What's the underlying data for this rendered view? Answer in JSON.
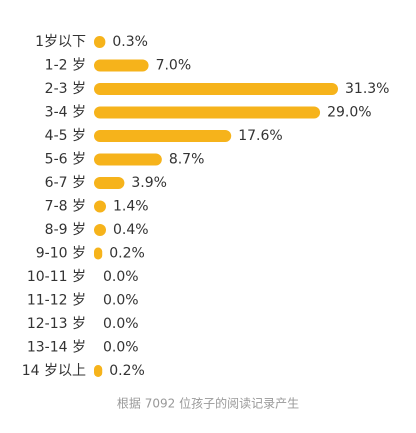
{
  "chart_data": {
    "type": "bar",
    "orientation": "horizontal",
    "categories": [
      "1岁以下",
      "1-2 岁",
      "2-3 岁",
      "3-4 岁",
      "4-5 岁",
      "5-6 岁",
      "6-7 岁",
      "7-8 岁",
      "8-9 岁",
      "9-10 岁",
      "10-11 岁",
      "11-12 岁",
      "12-13 岁",
      "13-14 岁",
      "14 岁以上"
    ],
    "values": [
      0.3,
      7.0,
      31.3,
      29.0,
      17.6,
      8.7,
      3.9,
      1.4,
      0.4,
      0.2,
      0,
      0,
      0,
      0,
      0.2
    ],
    "value_labels": [
      "0.3%",
      "7.0%",
      "31.3%",
      "29.0%",
      "17.6%",
      "8.7%",
      "3.9%",
      "1.4%",
      "0.4%",
      "0.2%",
      "0.0%",
      "0.0%",
      "0.0%",
      "0.0%",
      "0.2%"
    ],
    "color": "#f6b31b",
    "note": "根据 7092 位孩子的阅读记录产生"
  }
}
